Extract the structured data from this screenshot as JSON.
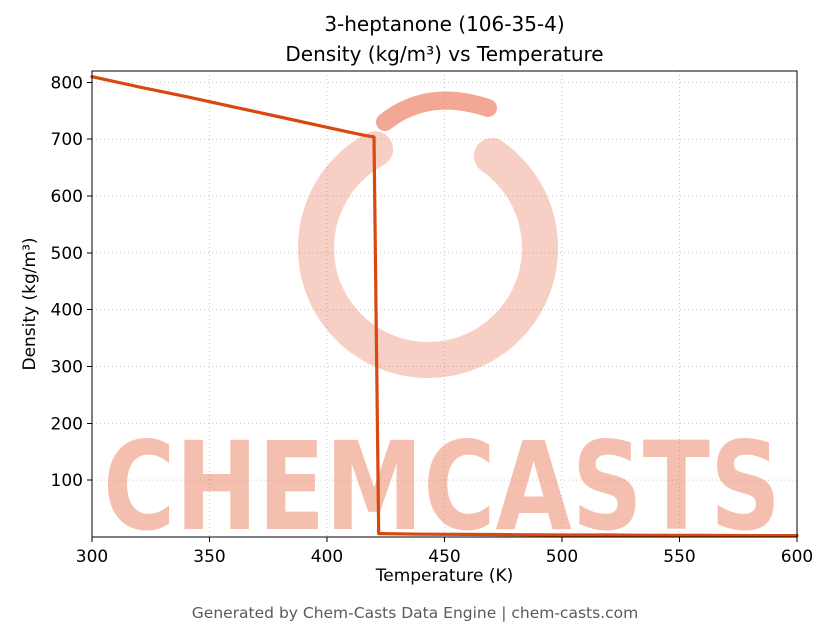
{
  "page": {
    "footer": "Generated by Chem-Casts Data Engine | chem-casts.com"
  },
  "watermark": {
    "text": "CHEMCASTS",
    "brand_color": "#e8603c"
  },
  "colors": {
    "line": "#d9480f",
    "grid": "#c9c9c9",
    "axis": "#000000",
    "footer_text": "#5a5a5a"
  },
  "chart_data": {
    "type": "line",
    "title": "3-heptanone (106-35-4)",
    "subtitle": "Density (kg/m³) vs Temperature",
    "xlabel": "Temperature (K)",
    "ylabel": "Density (kg/m³)",
    "xlim": [
      300,
      600
    ],
    "ylim": [
      0,
      820
    ],
    "xticks": [
      300,
      350,
      400,
      450,
      500,
      550,
      600
    ],
    "yticks": [
      100,
      200,
      300,
      400,
      500,
      600,
      700,
      800
    ],
    "grid": true,
    "legend": false,
    "series": [
      {
        "name": "Density (kg/m³)",
        "color": "#d9480f",
        "x": [
          300,
          320,
          340,
          360,
          380,
          400,
          410,
          417,
          420,
          421,
          422,
          440,
          460,
          480,
          500,
          520,
          540,
          560,
          580,
          600
        ],
        "y": [
          810,
          792,
          775,
          757,
          739,
          721,
          712,
          706,
          704,
          360,
          6,
          5,
          4.5,
          4,
          3.5,
          3.5,
          3,
          3,
          2.5,
          2.5
        ]
      }
    ]
  }
}
